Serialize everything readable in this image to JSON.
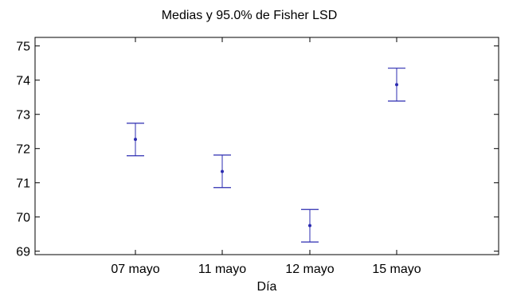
{
  "chart_data": {
    "type": "scatter",
    "title": "Medias y 95.0% de Fisher LSD",
    "xlabel": "Día",
    "ylabel": "",
    "categories": [
      "07 mayo",
      "11 mayo",
      "12 mayo",
      "15 mayo"
    ],
    "means": [
      72.27,
      71.33,
      69.75,
      73.87
    ],
    "lower": [
      71.79,
      70.86,
      69.27,
      73.39
    ],
    "upper": [
      72.74,
      71.81,
      70.22,
      74.35
    ],
    "ylim": [
      68.9,
      75.25
    ],
    "yticks": [
      69,
      70,
      71,
      72,
      73,
      74,
      75
    ],
    "grid": false,
    "color": "#2b2bb0"
  }
}
